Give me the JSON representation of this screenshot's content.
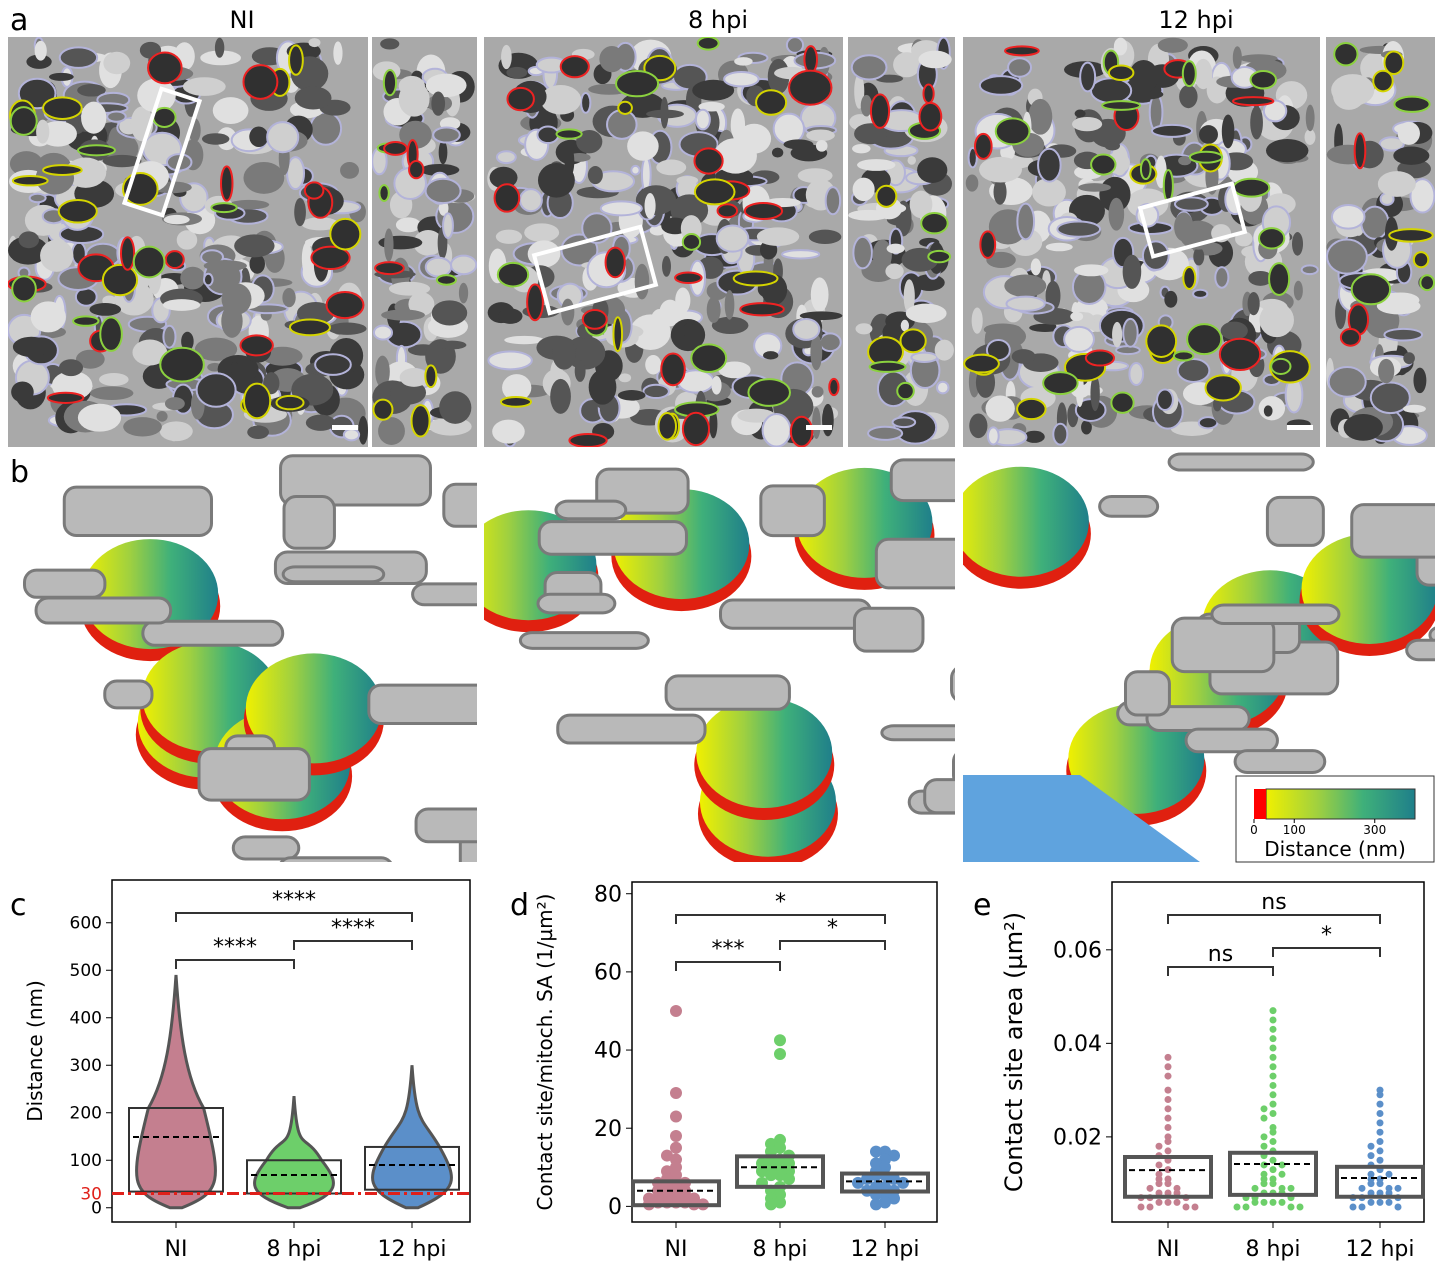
{
  "panels": {
    "a": "a",
    "b": "b",
    "c": "c",
    "d": "d",
    "e": "e"
  },
  "image_titles": [
    "NI",
    "8 hpi",
    "12 hpi"
  ],
  "colorbar": {
    "ticks": [
      0,
      100,
      300
    ],
    "lim": [
      0,
      400
    ],
    "red_until": 30,
    "label": "Distance (nm)"
  },
  "chart_data": [
    {
      "type": "violin",
      "ylabel": "Distance (nm)",
      "categories": [
        "NI",
        "8 hpi",
        "12 hpi"
      ],
      "colors": [
        "#c47f8f",
        "#6dcf6a",
        "#5b8fc9"
      ],
      "ylim": [
        -30,
        690
      ],
      "yticks": [
        0,
        100,
        200,
        300,
        400,
        500,
        600
      ],
      "max": [
        490,
        235,
        300
      ],
      "q1": [
        34,
        30,
        38
      ],
      "q3": [
        210,
        100,
        128
      ],
      "mean": [
        149,
        69,
        90
      ],
      "threshold": {
        "value": 30,
        "label": "30"
      },
      "significance": [
        "****",
        "****",
        "****"
      ]
    },
    {
      "type": "strip",
      "ylabel": "Contact site/mitoch. SA (1/µm²)",
      "categories": [
        "NI",
        "8 hpi",
        "12 hpi"
      ],
      "colors": [
        "#c47f8f",
        "#6dcf6a",
        "#5b8fc9"
      ],
      "ylim": [
        -4,
        83
      ],
      "yticks": [
        0,
        20,
        40,
        60,
        80
      ],
      "q1": [
        0.3,
        5,
        3.8
      ],
      "q3": [
        6.4,
        12.8,
        8.4
      ],
      "mean": [
        4,
        10,
        6.4
      ],
      "points": [
        [
          50,
          29,
          23,
          18,
          15,
          13,
          12,
          10,
          9,
          8,
          7,
          6,
          6,
          5,
          5,
          4,
          4,
          3,
          3,
          3,
          2,
          2,
          2,
          1,
          1,
          1,
          1,
          0.5,
          0.5,
          0.5
        ],
        [
          42.5,
          39,
          17,
          16,
          15,
          14,
          13,
          12,
          12,
          11,
          11,
          10,
          10,
          9,
          9,
          8,
          8,
          7,
          6,
          5,
          4,
          3,
          2,
          1,
          0.5
        ],
        [
          14,
          14,
          13,
          12,
          11,
          10,
          9,
          8,
          8,
          7,
          7,
          6,
          6,
          5,
          5,
          4,
          4,
          3,
          3,
          2,
          1,
          0.5
        ]
      ],
      "significance": [
        "*",
        "***",
        "*"
      ]
    },
    {
      "type": "strip",
      "ylabel": "Contact site area (µm²)",
      "categories": [
        "NI",
        "8 hpi",
        "12 hpi"
      ],
      "colors": [
        "#c47f8f",
        "#6dcf6a",
        "#5b8fc9"
      ],
      "ylim": [
        0.0018,
        0.0745
      ],
      "yticks": [
        0.02,
        0.04,
        0.06
      ],
      "q1": [
        0.0072,
        0.0076,
        0.0072
      ],
      "q3": [
        0.0157,
        0.0166,
        0.0136
      ],
      "mean": [
        0.0129,
        0.0142,
        0.0112
      ],
      "points": [
        [
          0.037,
          0.035,
          0.033,
          0.03,
          0.028,
          0.026,
          0.024,
          0.022,
          0.02,
          0.019,
          0.018,
          0.017,
          0.016,
          0.015,
          0.014,
          0.013,
          0.012,
          0.011,
          0.011,
          0.01,
          0.01,
          0.009,
          0.009,
          0.008,
          0.008,
          0.008,
          0.007,
          0.007,
          0.007,
          0.006,
          0.006,
          0.006,
          0.005,
          0.005,
          0.005,
          0.005
        ],
        [
          0.047,
          0.045,
          0.043,
          0.041,
          0.039,
          0.037,
          0.035,
          0.033,
          0.031,
          0.029,
          0.027,
          0.026,
          0.025,
          0.024,
          0.022,
          0.021,
          0.02,
          0.019,
          0.018,
          0.017,
          0.016,
          0.015,
          0.014,
          0.014,
          0.013,
          0.012,
          0.012,
          0.011,
          0.011,
          0.01,
          0.01,
          0.009,
          0.009,
          0.009,
          0.008,
          0.008,
          0.008,
          0.007,
          0.007,
          0.007,
          0.006,
          0.006,
          0.006,
          0.006,
          0.005,
          0.005,
          0.005,
          0.005
        ],
        [
          0.03,
          0.029,
          0.027,
          0.025,
          0.023,
          0.021,
          0.019,
          0.018,
          0.017,
          0.016,
          0.015,
          0.014,
          0.013,
          0.012,
          0.012,
          0.011,
          0.011,
          0.01,
          0.01,
          0.009,
          0.009,
          0.009,
          0.008,
          0.008,
          0.008,
          0.007,
          0.007,
          0.007,
          0.006,
          0.006,
          0.006,
          0.005,
          0.005,
          0.005
        ]
      ],
      "significance": [
        "ns",
        "ns",
        "*"
      ]
    }
  ]
}
